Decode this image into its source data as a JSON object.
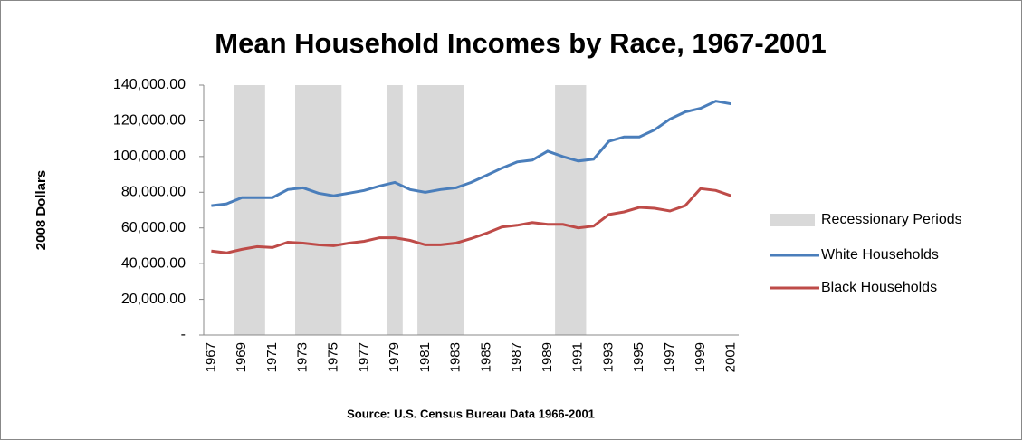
{
  "chart_data": {
    "type": "line",
    "title": "Mean Household Incomes by Race, 1967-2001",
    "y_label": "2008 Dollars",
    "source": "Source: U.S. Census Bureau Data 1966-2001",
    "categories": [
      "1967",
      null,
      "1969",
      null,
      "1971",
      null,
      "1973",
      null,
      "1975",
      null,
      "1977",
      null,
      "1979",
      null,
      "1981",
      null,
      "1983",
      null,
      "1985",
      null,
      "1987",
      null,
      "1989",
      null,
      "1991",
      null,
      "1993",
      null,
      "1995",
      null,
      "1997",
      null,
      "1999",
      null,
      "2001"
    ],
    "series": [
      {
        "name": "Recessionary Periods",
        "type": "bar",
        "color": "#d9d9d9",
        "values": [
          null,
          null,
          140000,
          140000,
          null,
          null,
          140000,
          140000,
          140000,
          null,
          null,
          null,
          140000,
          null,
          140000,
          140000,
          140000,
          null,
          null,
          null,
          null,
          null,
          null,
          140000,
          140000,
          null,
          null,
          null,
          null,
          null,
          null,
          null,
          null,
          null,
          null
        ]
      },
      {
        "name": "White Households",
        "type": "line",
        "color": "#4a7ebb",
        "values": [
          72500,
          73500,
          77000,
          77000,
          77000,
          81500,
          82500,
          79500,
          78000,
          79500,
          81000,
          83500,
          85500,
          81500,
          80000,
          81500,
          82500,
          85500,
          89500,
          93500,
          97000,
          98000,
          103000,
          100000,
          97500,
          98500,
          108500,
          111000,
          111000,
          115000,
          121000,
          125000,
          127000,
          131000,
          129500
        ]
      },
      {
        "name": "Black Households",
        "type": "line",
        "color": "#be4b48",
        "values": [
          47000,
          46000,
          48000,
          49500,
          49000,
          52000,
          51500,
          50500,
          50000,
          51500,
          52500,
          54500,
          54500,
          53000,
          50500,
          50500,
          51500,
          54000,
          57000,
          60500,
          61500,
          63000,
          62000,
          62000,
          60000,
          61000,
          67500,
          69000,
          71500,
          71000,
          69500,
          72500,
          82000,
          81000,
          78000
        ]
      }
    ],
    "ylim": [
      0,
      140000
    ],
    "yticks": [
      {
        "value": 0,
        "label": "-"
      },
      {
        "value": 20000,
        "label": "20,000.00"
      },
      {
        "value": 40000,
        "label": "40,000.00"
      },
      {
        "value": 60000,
        "label": "60,000.00"
      },
      {
        "value": 80000,
        "label": "80,000.00"
      },
      {
        "value": 100000,
        "label": "100,000.00"
      },
      {
        "value": 120000,
        "label": "120,000.00"
      },
      {
        "value": 140000,
        "label": "140,000.00"
      }
    ],
    "grid": true,
    "legend": "right"
  }
}
